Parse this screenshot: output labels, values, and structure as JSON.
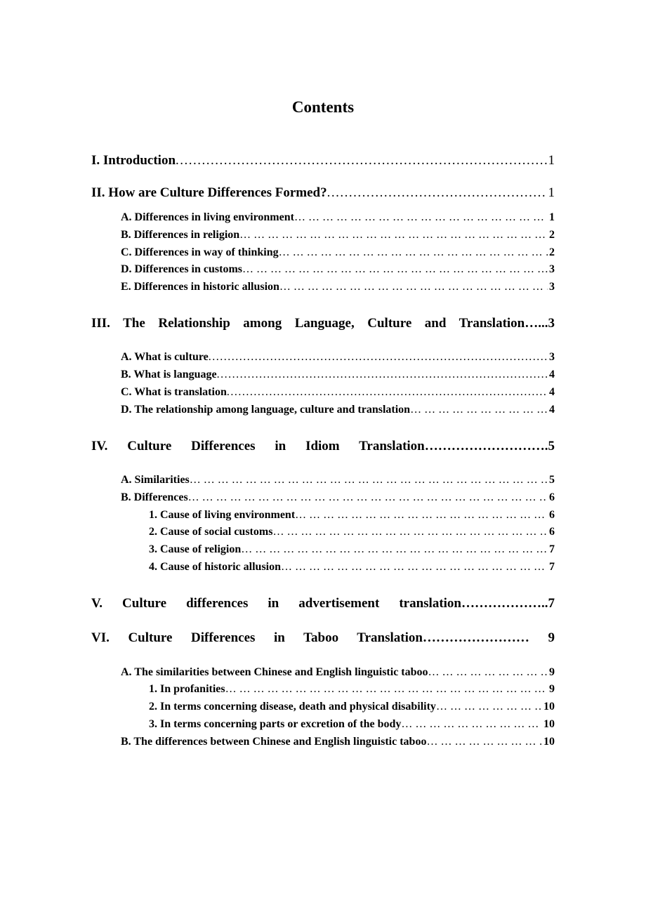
{
  "page_title": "Contents",
  "sections": {
    "s1": {
      "label": "I. Introduction",
      "page": "1"
    },
    "s2": {
      "label": "II. How are Culture Differences Formed?",
      "page": "1"
    },
    "s2a": {
      "label": "A. Differences in living environment",
      "page": "1"
    },
    "s2b": {
      "label": "B. Differences in religion",
      "page": "2"
    },
    "s2c": {
      "label": "C. Differences in way of thinking",
      "page": "2"
    },
    "s2d": {
      "label": "D. Differences in customs",
      "page": "3"
    },
    "s2e": {
      "label": "E. Differences in historic allusion",
      "page": "3"
    },
    "s3": {
      "label": "III. The Relationship among Language, Culture and Translation…...3"
    },
    "s3a": {
      "label": "A. What is culture",
      "page": "3"
    },
    "s3b": {
      "label": "B. What is language",
      "page": "4"
    },
    "s3c": {
      "label": "C. What is translation",
      "page": "4"
    },
    "s3d": {
      "label": "D. The relationship among language, culture and translation",
      "page": "4"
    },
    "s4": {
      "label": "IV. Culture Differences in Idiom Translation……………………….5"
    },
    "s4a": {
      "label": "A. Similarities",
      "page": "5"
    },
    "s4b": {
      "label": "B. Differences",
      "page": "6"
    },
    "s4b1": {
      "label": "1. Cause of living environment",
      "page": "6"
    },
    "s4b2": {
      "label": "2. Cause of social customs",
      "page": "6"
    },
    "s4b3": {
      "label": "3. Cause of religion",
      "page": "7"
    },
    "s4b4": {
      "label": "4. Cause of historic allusion",
      "page": "7"
    },
    "s5": {
      "label": "V. Culture differences in advertisement translation………………..7"
    },
    "s6": {
      "label": "VI. Culture Differences in Taboo Translation…………………… 9"
    },
    "s6a": {
      "label": "A. The similarities between Chinese and English linguistic taboo",
      "page": "9"
    },
    "s6a1": {
      "label": "1. In profanities",
      "page": "9"
    },
    "s6a2": {
      "label": "2. In terms concerning disease, death and physical disability",
      "page": "10"
    },
    "s6a3": {
      "label": "3. In terms concerning parts or excretion of the body",
      "page": "10"
    },
    "s6b": {
      "label": "B. The differences between Chinese and English linguistic taboo",
      "page": "10"
    }
  }
}
